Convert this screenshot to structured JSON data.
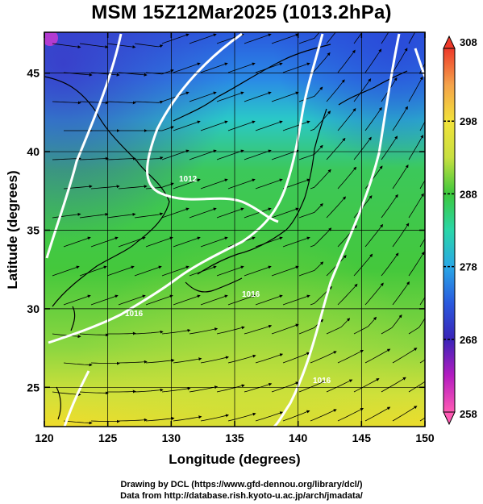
{
  "title": "MSM 15Z12Mar2025 (1013.2hPa)",
  "map": {
    "xlabel": "Longitude (degrees)",
    "ylabel": "Latitude  (degrees)",
    "lon_range": [
      120,
      150
    ],
    "lat_range": [
      22.5,
      47.6
    ],
    "lon_ticks": [
      120,
      125,
      130,
      135,
      140,
      145,
      150
    ],
    "lat_ticks": [
      25,
      30,
      35,
      40,
      45
    ],
    "grid": true,
    "contour_color": "#ffffff",
    "contour_labels": [
      "1012",
      "1016",
      "1016",
      "1016"
    ],
    "streamline_color": "#000000"
  },
  "colorbar": {
    "ticks": [
      308,
      298,
      288,
      278,
      268,
      258
    ],
    "range": [
      258,
      308
    ],
    "colors": [
      "#ee3a2a",
      "#f4a24a",
      "#f2e23a",
      "#a8e04a",
      "#3cc83c",
      "#2ad6a8",
      "#2aa8e6",
      "#2a5ade",
      "#3a24b8",
      "#b41cc0",
      "#ff5ab4"
    ]
  },
  "credits": {
    "line1": "Drawing by DCL (https://www.gfd-dennou.org/library/dcl/)",
    "line2": "Data from http://database.rish.kyoto-u.ac.jp/arch/jmadata/"
  }
}
